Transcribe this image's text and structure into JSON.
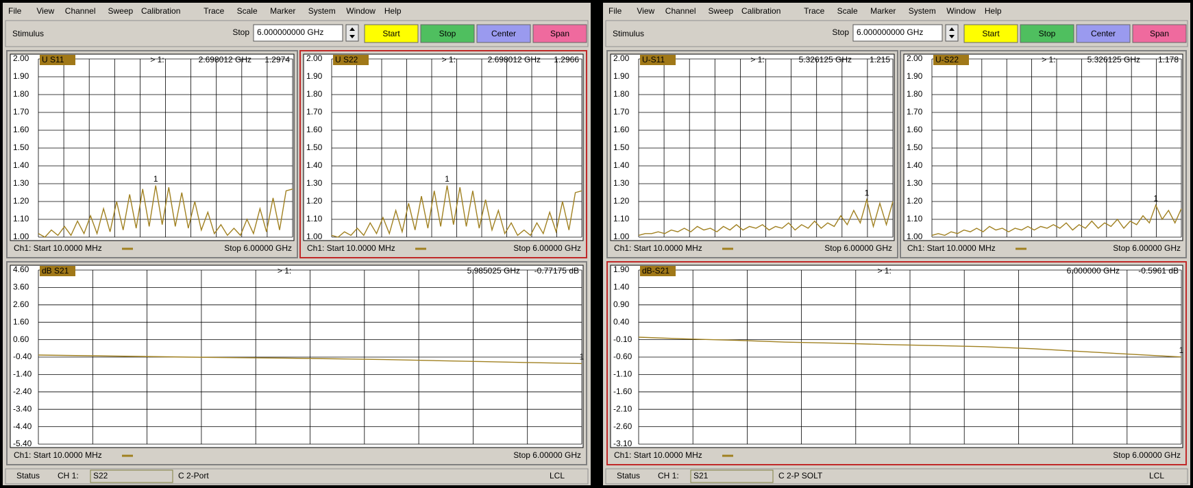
{
  "windows": [
    {
      "menu": [
        "File",
        "View",
        "Channel",
        "Sweep",
        "Calibration",
        "Trace",
        "Scale",
        "Marker",
        "System",
        "Window",
        "Help"
      ],
      "stimulus": {
        "label": "Stimulus",
        "field_label": "Stop",
        "field_value": "6.000000000 GHz",
        "buttons": [
          "Start",
          "Stop",
          "Center",
          "Span"
        ],
        "button_colors": [
          "#ffff00",
          "#4fbf5f",
          "#9a9aef",
          "#ef6a9e"
        ]
      },
      "plots": [
        {
          "trace_label": "U S11",
          "marker": "> 1:",
          "marker_freq": "2.698012 GHz",
          "marker_value": "1.2974",
          "marker_id": "1",
          "active": false,
          "ylim": [
            1.0,
            2.0
          ],
          "yticks": [
            {
              "value": 1.0,
              "label": "1.00"
            },
            {
              "value": 1.1,
              "label": "1.10"
            },
            {
              "value": 1.2,
              "label": "1.20"
            },
            {
              "value": 1.3,
              "label": "1.30"
            },
            {
              "value": 1.4,
              "label": "1.40"
            },
            {
              "value": 1.5,
              "label": "1.50"
            },
            {
              "value": 1.6,
              "label": "1.60"
            },
            {
              "value": 1.7,
              "label": "1.70"
            },
            {
              "value": 1.8,
              "label": "1.80"
            },
            {
              "value": 1.9,
              "label": "1.90"
            },
            {
              "value": 2.0,
              "label": "2.00"
            }
          ],
          "start": "Ch1: Start 10.0000 MHz",
          "stop": "Stop 6.00000 GHz",
          "color": "#a08020",
          "values": [
            1.02,
            1.0,
            1.04,
            1.01,
            1.06,
            1.01,
            1.09,
            1.02,
            1.12,
            1.02,
            1.16,
            1.03,
            1.2,
            1.04,
            1.24,
            1.05,
            1.27,
            1.06,
            1.29,
            1.07,
            1.28,
            1.06,
            1.25,
            1.05,
            1.2,
            1.04,
            1.14,
            1.02,
            1.07,
            1.01,
            1.05,
            1.01,
            1.1,
            1.02,
            1.16,
            1.03,
            1.22,
            1.04,
            1.26,
            1.27
          ]
        },
        {
          "trace_label": "U S22",
          "marker": "> 1:",
          "marker_freq": "2.698012 GHz",
          "marker_value": "1.2966",
          "marker_id": "1",
          "active": true,
          "ylim": [
            1.0,
            2.0
          ],
          "yticks": [
            {
              "value": 1.0,
              "label": "1.00"
            },
            {
              "value": 1.1,
              "label": "1.10"
            },
            {
              "value": 1.2,
              "label": "1.20"
            },
            {
              "value": 1.3,
              "label": "1.30"
            },
            {
              "value": 1.4,
              "label": "1.40"
            },
            {
              "value": 1.5,
              "label": "1.50"
            },
            {
              "value": 1.6,
              "label": "1.60"
            },
            {
              "value": 1.7,
              "label": "1.70"
            },
            {
              "value": 1.8,
              "label": "1.80"
            },
            {
              "value": 1.9,
              "label": "1.90"
            },
            {
              "value": 2.0,
              "label": "2.00"
            }
          ],
          "start": "Ch1: Start 10.0000 MHz",
          "stop": "Stop 6.00000 GHz",
          "color": "#a08020",
          "values": [
            1.01,
            1.0,
            1.03,
            1.01,
            1.05,
            1.01,
            1.08,
            1.02,
            1.11,
            1.02,
            1.15,
            1.03,
            1.19,
            1.04,
            1.23,
            1.05,
            1.26,
            1.06,
            1.29,
            1.07,
            1.28,
            1.06,
            1.26,
            1.05,
            1.21,
            1.04,
            1.15,
            1.02,
            1.08,
            1.01,
            1.04,
            1.01,
            1.08,
            1.02,
            1.14,
            1.03,
            1.2,
            1.04,
            1.25,
            1.26
          ]
        },
        {
          "trace_label": "dB S21",
          "marker": "> 1:",
          "marker_freq": "5.985025 GHz",
          "marker_value": "-0.77175 dB",
          "marker_id": "1",
          "active": false,
          "ylim": [
            -5.4,
            4.6
          ],
          "yticks": [
            {
              "value": -5.4,
              "label": "-5.40"
            },
            {
              "value": -4.4,
              "label": "-4.40"
            },
            {
              "value": -3.4,
              "label": "-3.40"
            },
            {
              "value": -2.4,
              "label": "-2.40"
            },
            {
              "value": -1.4,
              "label": "-1.40"
            },
            {
              "value": -0.4,
              "label": "-0.40"
            },
            {
              "value": 0.6,
              "label": "0.60"
            },
            {
              "value": 1.6,
              "label": "1.60"
            },
            {
              "value": 2.6,
              "label": "2.60"
            },
            {
              "value": 3.6,
              "label": "3.60"
            },
            {
              "value": 4.6,
              "label": "4.60"
            }
          ],
          "start": "Ch1: Start 10.0000 MHz",
          "stop": "Stop 6.00000 GHz",
          "color": "#a08020",
          "values": [
            -0.28,
            -0.32,
            -0.36,
            -0.4,
            -0.43,
            -0.46,
            -0.5,
            -0.54,
            -0.6,
            -0.66,
            -0.72,
            -0.77
          ]
        }
      ],
      "status": {
        "label": "Status",
        "channel": "CH 1:",
        "param": "S22",
        "cal": "C 2-Port",
        "lcl": "LCL"
      }
    },
    {
      "menu": [
        "File",
        "View",
        "Channel",
        "Sweep",
        "Calibration",
        "Trace",
        "Scale",
        "Marker",
        "System",
        "Window",
        "Help"
      ],
      "stimulus": {
        "label": "Stimulus",
        "field_label": "Stop",
        "field_value": "6.000000000 GHz",
        "buttons": [
          "Start",
          "Stop",
          "Center",
          "Span"
        ],
        "button_colors": [
          "#ffff00",
          "#4fbf5f",
          "#9a9aef",
          "#ef6a9e"
        ]
      },
      "plots": [
        {
          "trace_label": "U-S11",
          "marker": "> 1:",
          "marker_freq": "5.326125 GHz",
          "marker_value": "1.215",
          "marker_id": "1",
          "active": false,
          "ylim": [
            1.0,
            2.0
          ],
          "yticks": [
            {
              "value": 1.0,
              "label": "1.00"
            },
            {
              "value": 1.1,
              "label": "1.10"
            },
            {
              "value": 1.2,
              "label": "1.20"
            },
            {
              "value": 1.3,
              "label": "1.30"
            },
            {
              "value": 1.4,
              "label": "1.40"
            },
            {
              "value": 1.5,
              "label": "1.50"
            },
            {
              "value": 1.6,
              "label": "1.60"
            },
            {
              "value": 1.7,
              "label": "1.70"
            },
            {
              "value": 1.8,
              "label": "1.80"
            },
            {
              "value": 1.9,
              "label": "1.90"
            },
            {
              "value": 2.0,
              "label": "2.00"
            }
          ],
          "start": "Ch1: Start 10.0000 MHz",
          "stop": "Stop 6.00000 GHz",
          "color": "#a08020",
          "values": [
            1.01,
            1.02,
            1.02,
            1.03,
            1.02,
            1.04,
            1.03,
            1.05,
            1.03,
            1.06,
            1.04,
            1.05,
            1.03,
            1.06,
            1.04,
            1.07,
            1.04,
            1.06,
            1.05,
            1.07,
            1.04,
            1.06,
            1.05,
            1.08,
            1.04,
            1.07,
            1.05,
            1.09,
            1.05,
            1.08,
            1.06,
            1.12,
            1.07,
            1.15,
            1.08,
            1.21,
            1.06,
            1.19,
            1.07,
            1.2
          ]
        },
        {
          "trace_label": "U-S22",
          "marker": "> 1:",
          "marker_freq": "5.326125 GHz",
          "marker_value": "1.178",
          "marker_id": "1",
          "active": false,
          "ylim": [
            1.0,
            2.0
          ],
          "yticks": [
            {
              "value": 1.0,
              "label": "1.00"
            },
            {
              "value": 1.1,
              "label": "1.10"
            },
            {
              "value": 1.2,
              "label": "1.20"
            },
            {
              "value": 1.3,
              "label": "1.30"
            },
            {
              "value": 1.4,
              "label": "1.40"
            },
            {
              "value": 1.5,
              "label": "1.50"
            },
            {
              "value": 1.6,
              "label": "1.60"
            },
            {
              "value": 1.7,
              "label": "1.70"
            },
            {
              "value": 1.8,
              "label": "1.80"
            },
            {
              "value": 1.9,
              "label": "1.90"
            },
            {
              "value": 2.0,
              "label": "2.00"
            }
          ],
          "start": "Ch1: Start 10.0000 MHz",
          "stop": "Stop 6.00000 GHz",
          "color": "#a08020",
          "values": [
            1.01,
            1.02,
            1.01,
            1.03,
            1.02,
            1.04,
            1.03,
            1.05,
            1.03,
            1.06,
            1.04,
            1.05,
            1.03,
            1.05,
            1.04,
            1.06,
            1.04,
            1.06,
            1.05,
            1.07,
            1.05,
            1.08,
            1.04,
            1.07,
            1.05,
            1.09,
            1.05,
            1.08,
            1.06,
            1.1,
            1.05,
            1.09,
            1.07,
            1.12,
            1.08,
            1.18,
            1.1,
            1.15,
            1.08,
            1.16
          ]
        },
        {
          "trace_label": "dB-S21",
          "marker": "> 1:",
          "marker_freq": "6.000000 GHz",
          "marker_value": "-0.5961 dB",
          "marker_id": "1",
          "active": true,
          "ylim": [
            -3.1,
            1.9
          ],
          "yticks": [
            {
              "value": -3.1,
              "label": "-3.10"
            },
            {
              "value": -2.6,
              "label": "-2.60"
            },
            {
              "value": -2.1,
              "label": "-2.10"
            },
            {
              "value": -1.6,
              "label": "-1.60"
            },
            {
              "value": -1.1,
              "label": "-1.10"
            },
            {
              "value": -0.6,
              "label": "-0.60"
            },
            {
              "value": -0.1,
              "label": "-0.10"
            },
            {
              "value": 0.4,
              "label": "0.40"
            },
            {
              "value": 0.9,
              "label": "0.90"
            },
            {
              "value": 1.4,
              "label": "1.40"
            },
            {
              "value": 1.9,
              "label": "1.90"
            }
          ],
          "start": "Ch1: Start 10.0000 MHz",
          "stop": "Stop 6.00000 GHz",
          "color": "#a08020",
          "values": [
            -0.03,
            -0.08,
            -0.12,
            -0.17,
            -0.2,
            -0.24,
            -0.27,
            -0.3,
            -0.36,
            -0.44,
            -0.52,
            -0.596
          ]
        }
      ],
      "status": {
        "label": "Status",
        "channel": "CH 1:",
        "param": "S21",
        "cal": "C 2-P SOLT",
        "lcl": "LCL"
      }
    }
  ]
}
